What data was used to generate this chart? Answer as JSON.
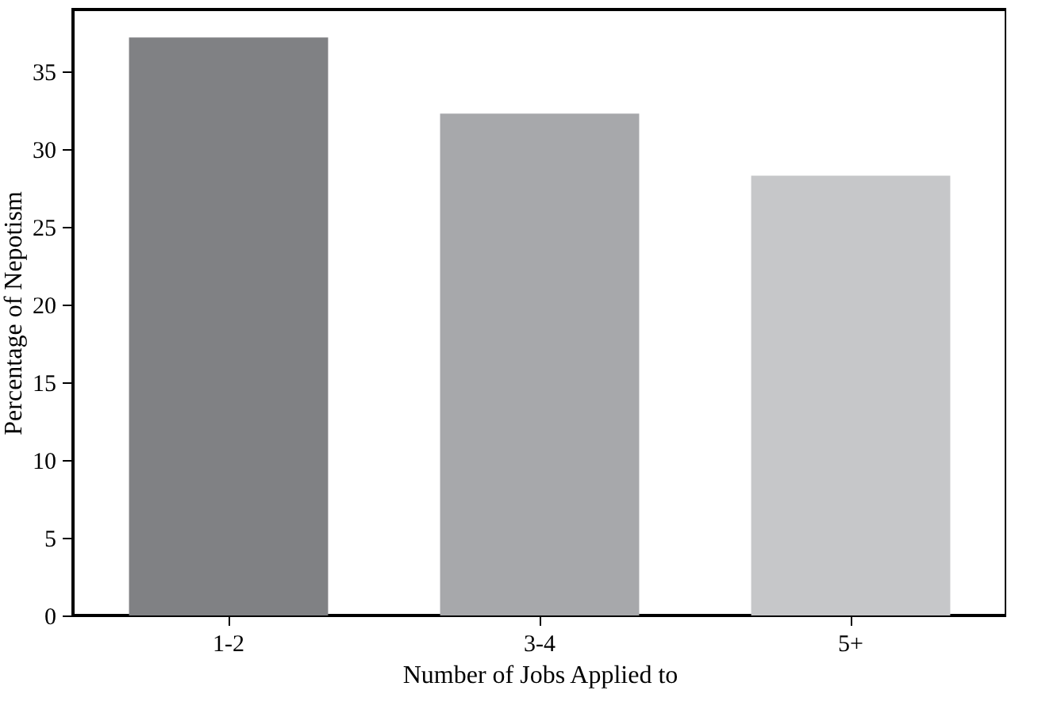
{
  "chart_data": {
    "type": "bar",
    "xlabel": "Number of Jobs Applied to",
    "ylabel": "Percentage of Nepotism",
    "categories": [
      "1-2",
      "3-4",
      "5+"
    ],
    "values": [
      37.2,
      32.3,
      28.3
    ],
    "colors": [
      "#808184",
      "#a7a8ab",
      "#c6c7c9"
    ],
    "ylim": [
      0,
      39
    ],
    "yticks": [
      0,
      5,
      10,
      15,
      20,
      25,
      30,
      35
    ],
    "grid": false,
    "legend": false
  }
}
